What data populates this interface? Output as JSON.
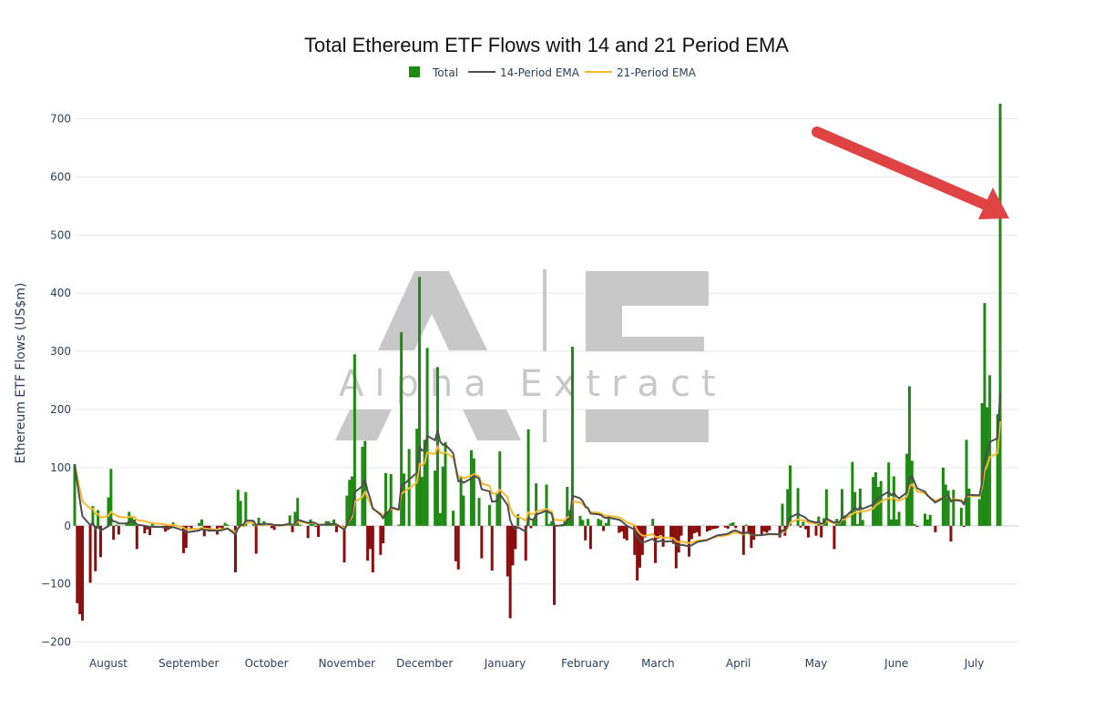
{
  "chart_data": {
    "type": "bar",
    "title": "Total Ethereum ETF Flows with 14 and 21 Period EMA",
    "ylabel": "Ethereum ETF Flows (US$m)",
    "xlabel": "",
    "ylim": [
      -210,
      740
    ],
    "yticks": [
      -200,
      -100,
      0,
      100,
      200,
      300,
      400,
      500,
      600,
      700
    ],
    "ytick_labels": [
      "−200",
      "−100",
      "0",
      "100",
      "200",
      "300",
      "400",
      "500",
      "600",
      "700"
    ],
    "x_start": "2024-07-23",
    "x_end": "2025-07-22",
    "month_labels": [
      {
        "label": "August",
        "date": "2024-08-05"
      },
      {
        "label": "September",
        "date": "2024-09-05"
      },
      {
        "label": "October",
        "date": "2024-10-05"
      },
      {
        "label": "November",
        "date": "2024-11-05"
      },
      {
        "label": "December",
        "date": "2024-12-05"
      },
      {
        "label": "January",
        "date": "2025-01-05"
      },
      {
        "label": "February",
        "date": "2025-02-05"
      },
      {
        "label": "March",
        "date": "2025-03-05"
      },
      {
        "label": "April",
        "date": "2025-04-05"
      },
      {
        "label": "May",
        "date": "2025-05-05"
      },
      {
        "label": "June",
        "date": "2025-06-05"
      },
      {
        "label": "July",
        "date": "2025-07-05"
      }
    ],
    "grid": true,
    "legend_position": "top-center",
    "series": [
      {
        "name": "Total",
        "kind": "bar",
        "color_positive": "#1f8a13",
        "color_negative": "#8b0d0d",
        "points": [
          [
            "2024-07-23",
            106
          ],
          [
            "2024-07-24",
            -133
          ],
          [
            "2024-07-25",
            -152
          ],
          [
            "2024-07-26",
            -163
          ],
          [
            "2024-07-29",
            -98
          ],
          [
            "2024-07-30",
            34
          ],
          [
            "2024-07-31",
            -78
          ],
          [
            "2024-08-01",
            27
          ],
          [
            "2024-08-02",
            -54
          ],
          [
            "2024-08-05",
            49
          ],
          [
            "2024-08-06",
            98
          ],
          [
            "2024-08-07",
            -24
          ],
          [
            "2024-08-08",
            2
          ],
          [
            "2024-08-09",
            -15
          ],
          [
            "2024-08-12",
            5
          ],
          [
            "2024-08-13",
            24
          ],
          [
            "2024-08-14",
            17
          ],
          [
            "2024-08-15",
            11
          ],
          [
            "2024-08-16",
            -40
          ],
          [
            "2024-08-19",
            -13
          ],
          [
            "2024-08-20",
            -6
          ],
          [
            "2024-08-21",
            -16
          ],
          [
            "2024-08-22",
            5
          ],
          [
            "2024-08-23",
            -2
          ],
          [
            "2024-08-26",
            -4
          ],
          [
            "2024-08-27",
            -10
          ],
          [
            "2024-08-28",
            -7
          ],
          [
            "2024-08-29",
            -2
          ],
          [
            "2024-08-30",
            6
          ],
          [
            "2024-09-03",
            -47
          ],
          [
            "2024-09-04",
            -38
          ],
          [
            "2024-09-05",
            -1
          ],
          [
            "2024-09-06",
            -6
          ],
          [
            "2024-09-09",
            5
          ],
          [
            "2024-09-10",
            11
          ],
          [
            "2024-09-11",
            -18
          ],
          [
            "2024-09-12",
            -8
          ],
          [
            "2024-09-13",
            -10
          ],
          [
            "2024-09-16",
            -15
          ],
          [
            "2024-09-17",
            -3
          ],
          [
            "2024-09-18",
            -5
          ],
          [
            "2024-09-19",
            5
          ],
          [
            "2024-09-20",
            2
          ],
          [
            "2024-09-23",
            -80
          ],
          [
            "2024-09-24",
            62
          ],
          [
            "2024-09-25",
            43
          ],
          [
            "2024-09-26",
            -2
          ],
          [
            "2024-09-27",
            58
          ],
          [
            "2024-09-30",
            8
          ],
          [
            "2024-10-01",
            -48
          ],
          [
            "2024-10-02",
            14
          ],
          [
            "2024-10-03",
            3
          ],
          [
            "2024-10-04",
            8
          ],
          [
            "2024-10-07",
            -4
          ],
          [
            "2024-10-08",
            -7
          ],
          [
            "2024-10-09",
            2
          ],
          [
            "2024-10-10",
            0
          ],
          [
            "2024-10-11",
            1
          ],
          [
            "2024-10-14",
            18
          ],
          [
            "2024-10-15",
            -11
          ],
          [
            "2024-10-16",
            24
          ],
          [
            "2024-10-17",
            48
          ],
          [
            "2024-10-18",
            2
          ],
          [
            "2024-10-21",
            -21
          ],
          [
            "2024-10-22",
            11
          ],
          [
            "2024-10-23",
            3
          ],
          [
            "2024-10-24",
            -2
          ],
          [
            "2024-10-25",
            -19
          ],
          [
            "2024-10-28",
            8
          ],
          [
            "2024-10-29",
            8
          ],
          [
            "2024-10-30",
            4
          ],
          [
            "2024-10-31",
            11
          ],
          [
            "2024-11-01",
            -11
          ],
          [
            "2024-11-04",
            -63
          ],
          [
            "2024-11-05",
            52
          ],
          [
            "2024-11-06",
            79
          ],
          [
            "2024-11-07",
            85
          ],
          [
            "2024-11-08",
            295
          ],
          [
            "2024-11-11",
            136
          ],
          [
            "2024-11-12",
            146
          ],
          [
            "2024-11-13",
            -60
          ],
          [
            "2024-11-14",
            -40
          ],
          [
            "2024-11-15",
            -80
          ],
          [
            "2024-11-18",
            -50
          ],
          [
            "2024-11-19",
            -30
          ],
          [
            "2024-11-20",
            91
          ],
          [
            "2024-11-21",
            24
          ],
          [
            "2024-11-22",
            89
          ],
          [
            "2024-11-25",
            2
          ],
          [
            "2024-11-26",
            333
          ],
          [
            "2024-11-27",
            90
          ],
          [
            "2024-11-29",
            132
          ],
          [
            "2024-12-02",
            167
          ],
          [
            "2024-12-03",
            428
          ],
          [
            "2024-12-04",
            84
          ],
          [
            "2024-12-05",
            148
          ],
          [
            "2024-12-06",
            306
          ],
          [
            "2024-12-09",
            95
          ],
          [
            "2024-12-10",
            273
          ],
          [
            "2024-12-11",
            22
          ],
          [
            "2024-12-12",
            102
          ],
          [
            "2024-12-13",
            144
          ],
          [
            "2024-12-16",
            26
          ],
          [
            "2024-12-17",
            -61
          ],
          [
            "2024-12-18",
            -75
          ],
          [
            "2024-12-19",
            84
          ],
          [
            "2024-12-20",
            52
          ],
          [
            "2024-12-23",
            130
          ],
          [
            "2024-12-24",
            116
          ],
          [
            "2024-12-26",
            48
          ],
          [
            "2024-12-27",
            -56
          ],
          [
            "2024-12-30",
            36
          ],
          [
            "2024-12-31",
            -77
          ],
          [
            "2025-01-02",
            57
          ],
          [
            "2025-01-03",
            128
          ],
          [
            "2025-01-06",
            -87
          ],
          [
            "2025-01-07",
            -159
          ],
          [
            "2025-01-08",
            -68
          ],
          [
            "2025-01-09",
            -40
          ],
          [
            "2025-01-10",
            20
          ],
          [
            "2025-01-13",
            -60
          ],
          [
            "2025-01-14",
            166
          ],
          [
            "2025-01-15",
            -4
          ],
          [
            "2025-01-16",
            10
          ],
          [
            "2025-01-17",
            73
          ],
          [
            "2025-01-21",
            71
          ],
          [
            "2025-01-22",
            3
          ],
          [
            "2025-01-23",
            8
          ],
          [
            "2025-01-24",
            -136
          ],
          [
            "2025-01-27",
            3
          ],
          [
            "2025-01-28",
            8
          ],
          [
            "2025-01-29",
            67
          ],
          [
            "2025-01-30",
            27
          ],
          [
            "2025-01-31",
            308
          ],
          [
            "2025-02-03",
            17
          ],
          [
            "2025-02-04",
            10
          ],
          [
            "2025-02-05",
            -25
          ],
          [
            "2025-02-06",
            12
          ],
          [
            "2025-02-07",
            -40
          ],
          [
            "2025-02-10",
            12
          ],
          [
            "2025-02-11",
            10
          ],
          [
            "2025-02-12",
            -9
          ],
          [
            "2025-02-13",
            5
          ],
          [
            "2025-02-14",
            17
          ],
          [
            "2025-02-18",
            -12
          ],
          [
            "2025-02-19",
            -10
          ],
          [
            "2025-02-20",
            -22
          ],
          [
            "2025-02-21",
            -25
          ],
          [
            "2025-02-24",
            -50
          ],
          [
            "2025-02-25",
            -94
          ],
          [
            "2025-02-26",
            -72
          ],
          [
            "2025-02-27",
            -50
          ],
          [
            "2025-02-28",
            -20
          ],
          [
            "2025-03-03",
            12
          ],
          [
            "2025-03-04",
            -64
          ],
          [
            "2025-03-05",
            -22
          ],
          [
            "2025-03-06",
            -16
          ],
          [
            "2025-03-07",
            -36
          ],
          [
            "2025-03-10",
            -23
          ],
          [
            "2025-03-11",
            -31
          ],
          [
            "2025-03-12",
            -73
          ],
          [
            "2025-03-13",
            -46
          ],
          [
            "2025-03-14",
            -17
          ],
          [
            "2025-03-17",
            -53
          ],
          [
            "2025-03-18",
            -23
          ],
          [
            "2025-03-19",
            -13
          ],
          [
            "2025-03-20",
            -11
          ],
          [
            "2025-03-21",
            -18
          ],
          [
            "2025-03-24",
            -10
          ],
          [
            "2025-03-25",
            -8
          ],
          [
            "2025-03-26",
            -6
          ],
          [
            "2025-03-27",
            -5
          ],
          [
            "2025-03-28",
            -4
          ],
          [
            "2025-03-31",
            -3
          ],
          [
            "2025-04-01",
            -5
          ],
          [
            "2025-04-02",
            4
          ],
          [
            "2025-04-03",
            6
          ],
          [
            "2025-04-04",
            -4
          ],
          [
            "2025-04-07",
            -50
          ],
          [
            "2025-04-08",
            2
          ],
          [
            "2025-04-09",
            -11
          ],
          [
            "2025-04-10",
            -38
          ],
          [
            "2025-04-11",
            -24
          ],
          [
            "2025-04-14",
            -15
          ],
          [
            "2025-04-15",
            -10
          ],
          [
            "2025-04-16",
            -12
          ],
          [
            "2025-04-17",
            -8
          ],
          [
            "2025-04-21",
            -20
          ],
          [
            "2025-04-22",
            38
          ],
          [
            "2025-04-23",
            -17
          ],
          [
            "2025-04-24",
            63
          ],
          [
            "2025-04-25",
            104
          ],
          [
            "2025-04-28",
            65
          ],
          [
            "2025-04-29",
            -3
          ],
          [
            "2025-04-30",
            7
          ],
          [
            "2025-05-01",
            -6
          ],
          [
            "2025-05-02",
            -20
          ],
          [
            "2025-05-05",
            -17
          ],
          [
            "2025-05-06",
            16
          ],
          [
            "2025-05-07",
            -20
          ],
          [
            "2025-05-08",
            13
          ],
          [
            "2025-05-09",
            63
          ],
          [
            "2025-05-12",
            -40
          ],
          [
            "2025-05-13",
            12
          ],
          [
            "2025-05-14",
            4
          ],
          [
            "2025-05-15",
            63
          ],
          [
            "2025-05-16",
            18
          ],
          [
            "2025-05-19",
            110
          ],
          [
            "2025-05-20",
            58
          ],
          [
            "2025-05-21",
            3
          ],
          [
            "2025-05-22",
            64
          ],
          [
            "2025-05-23",
            10
          ],
          [
            "2025-05-27",
            84
          ],
          [
            "2025-05-28",
            92
          ],
          [
            "2025-05-29",
            67
          ],
          [
            "2025-05-30",
            77
          ],
          [
            "2025-06-02",
            109
          ],
          [
            "2025-06-03",
            11
          ],
          [
            "2025-06-04",
            85
          ],
          [
            "2025-06-05",
            11
          ],
          [
            "2025-06-06",
            24
          ],
          [
            "2025-06-09",
            124
          ],
          [
            "2025-06-10",
            240
          ],
          [
            "2025-06-11",
            112
          ],
          [
            "2025-06-12",
            3
          ],
          [
            "2025-06-13",
            -2
          ],
          [
            "2025-06-16",
            21
          ],
          [
            "2025-06-17",
            11
          ],
          [
            "2025-06-18",
            19
          ],
          [
            "2025-06-20",
            -11
          ],
          [
            "2025-06-23",
            100
          ],
          [
            "2025-06-24",
            71
          ],
          [
            "2025-06-25",
            61
          ],
          [
            "2025-06-26",
            -27
          ],
          [
            "2025-06-27",
            62
          ],
          [
            "2025-06-30",
            31
          ],
          [
            "2025-07-01",
            -2
          ],
          [
            "2025-07-02",
            148
          ],
          [
            "2025-07-03",
            64
          ],
          [
            "2025-07-07",
            46
          ],
          [
            "2025-07-08",
            211
          ],
          [
            "2025-07-09",
            383
          ],
          [
            "2025-07-10",
            204
          ],
          [
            "2025-07-11",
            259
          ],
          [
            "2025-07-14",
            192
          ],
          [
            "2025-07-15",
            726
          ]
        ]
      },
      {
        "name": "14-Period EMA",
        "kind": "line",
        "color": "#4d4d4d"
      },
      {
        "name": "21-Period EMA",
        "kind": "line",
        "color": "#f5b82e"
      }
    ],
    "watermark": {
      "text": "Alpha Extract",
      "color": "#c8c8c8"
    },
    "annotation": {
      "type": "arrow",
      "color": "#e04343"
    }
  }
}
